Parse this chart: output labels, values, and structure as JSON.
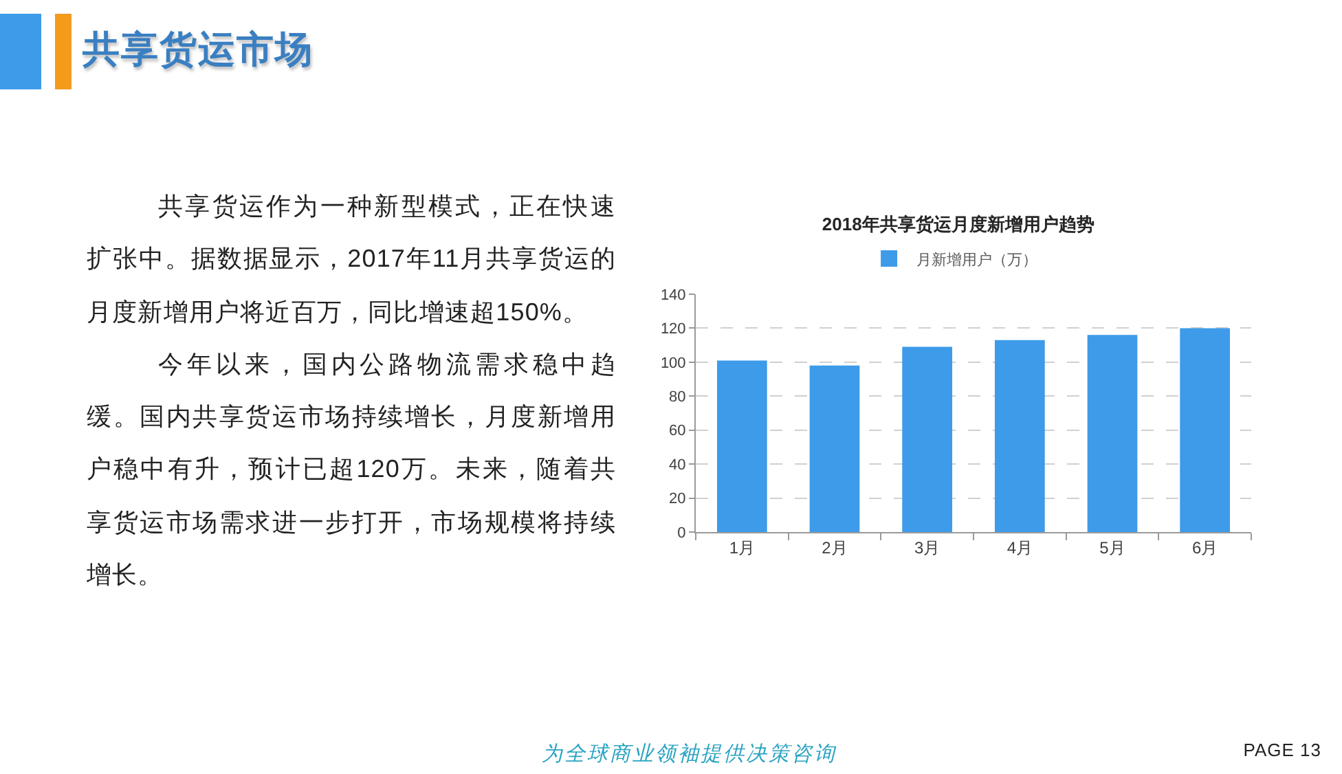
{
  "chart_data": {
    "type": "bar",
    "title": "2018年共享货运月度新增用户趋势",
    "categories": [
      "1月",
      "2月",
      "3月",
      "4月",
      "5月",
      "6月"
    ],
    "series": [
      {
        "name": "月新增用户（万）",
        "color": "#3d9be9",
        "values": [
          101,
          98,
          109,
          113,
          116,
          120
        ]
      }
    ],
    "ylim": [
      0,
      140
    ],
    "yticks": [
      0,
      20,
      40,
      60,
      80,
      100,
      120,
      140
    ],
    "grid": "y",
    "legend": "top",
    "annotations": [
      "共享货运市场",
      "共享货运作为一种新型模式，正在快速扩张中。据数据显示，2017年11月共享货运的月度新增用户将近百万，同比增速超150%。",
      "今年以来，国内公路物流需求稳中趋缓。国内共享货运市场持续增长，月度新增用户稳中有升，预计已超120万。未来，随着共享货运市场需求进一步打开，市场规模将持续增长。",
      "为全球商业领袖提供决策咨询",
      "PAGE 13"
    ]
  }
}
